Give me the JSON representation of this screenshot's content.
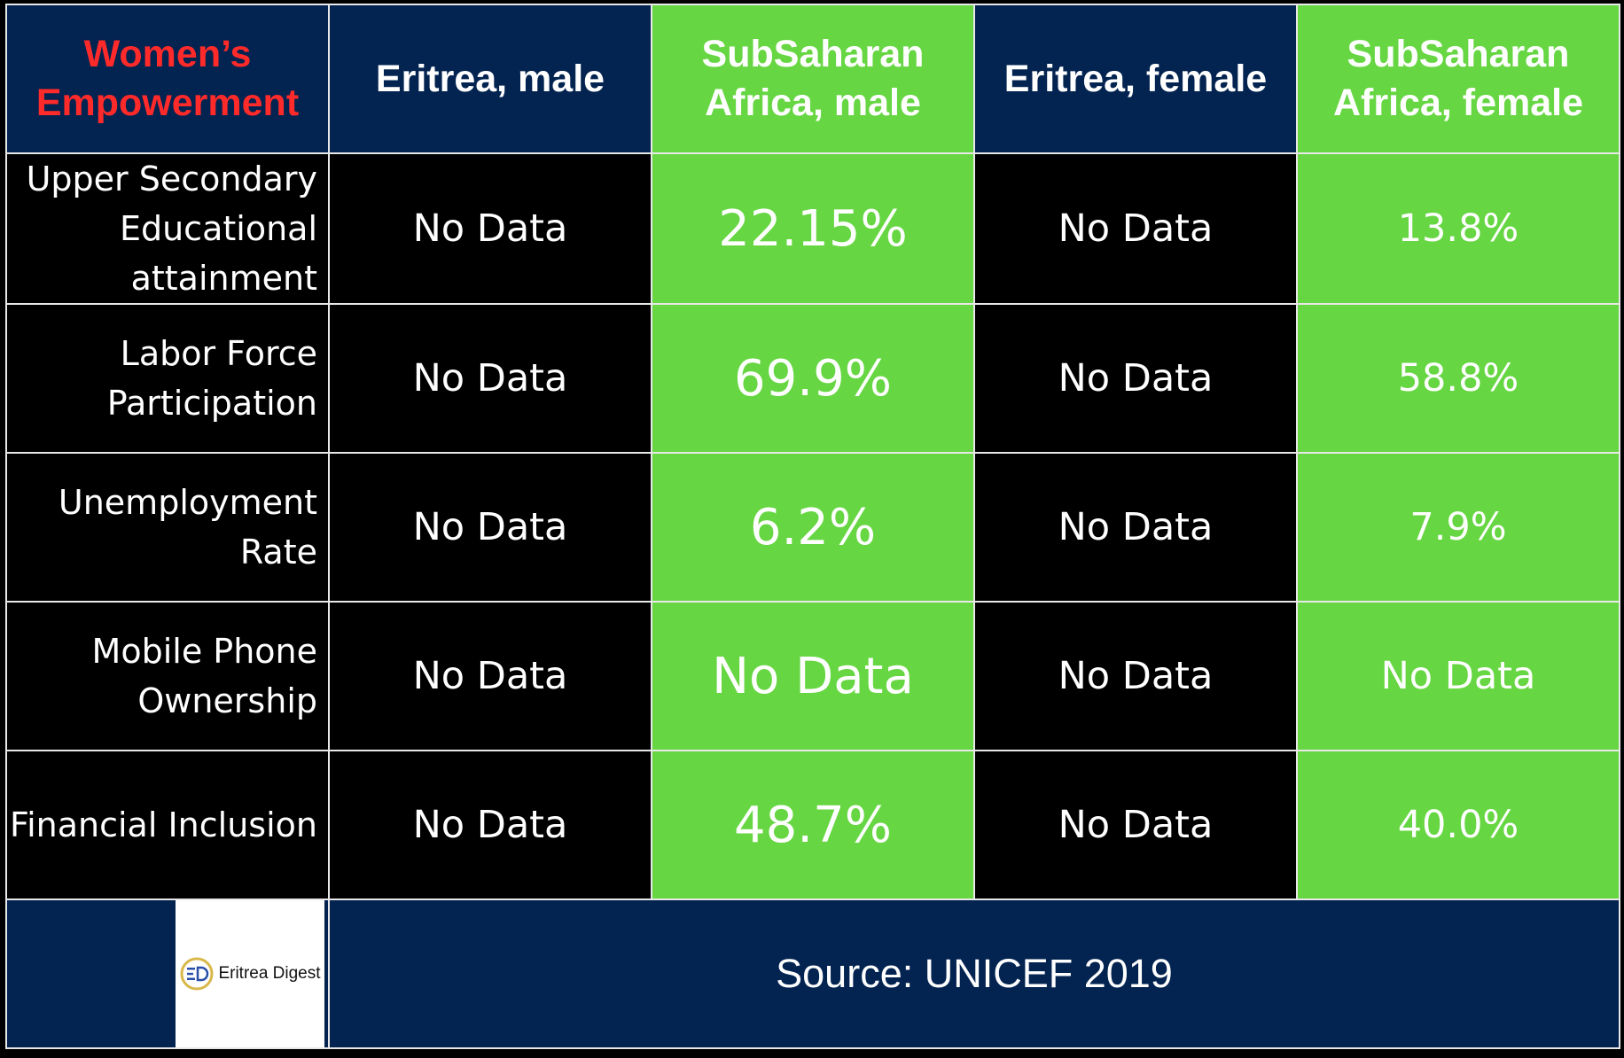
{
  "chart_data": {
    "type": "table",
    "title": "Women’s Empowerment",
    "columns": [
      "Eritrea, male",
      "SubSaharan Africa, male",
      "Eritrea, female",
      "SubSaharan Africa, female"
    ],
    "rows": [
      {
        "label": "Upper Secondary Educational attainment",
        "values": [
          "No Data",
          "22.15%",
          "No Data",
          "13.8%"
        ]
      },
      {
        "label": "Labor Force Participation",
        "values": [
          "No Data",
          "69.9%",
          "No Data",
          "58.8%"
        ]
      },
      {
        "label": "Unemployment Rate",
        "values": [
          "No Data",
          "6.2%",
          "No Data",
          "7.9%"
        ]
      },
      {
        "label": "Mobile Phone Ownership",
        "values": [
          "No Data",
          "No Data",
          "No Data",
          "No Data"
        ]
      },
      {
        "label": "Financial Inclusion",
        "values": [
          "No Data",
          "48.7%",
          "No Data",
          "40.0%"
        ]
      }
    ],
    "source": "Source: UNICEF 2019"
  },
  "logo": {
    "text": "Eritrea Digest",
    "icon": "eritrea-digest-logo-icon"
  },
  "colors": {
    "navy": "#032350",
    "green": "#66d642",
    "black": "#000000",
    "title_red": "#ff2a2a"
  }
}
